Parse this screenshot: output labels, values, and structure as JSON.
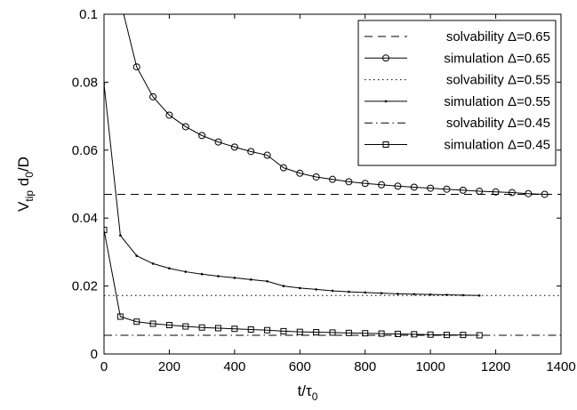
{
  "chart_data": {
    "type": "line",
    "xlabel": {
      "main": "t/τ",
      "sub": "0"
    },
    "ylabel": {
      "p1": "V",
      "s1": "tip",
      "p2": " d",
      "s2": "0",
      "p3": "/D"
    },
    "xlim": [
      0,
      1400
    ],
    "ylim": [
      0,
      0.1
    ],
    "xticks": [
      0,
      200,
      400,
      600,
      800,
      1000,
      1200,
      1400
    ],
    "yticks": [
      0,
      0.02,
      0.04,
      0.06,
      0.08,
      0.1
    ],
    "xtick_labels": [
      "0",
      "200",
      "400",
      "600",
      "800",
      "1000",
      "1200",
      "1400"
    ],
    "ytick_labels": [
      "0",
      "0.02",
      "0.04",
      "0.06",
      "0.08",
      "0.1"
    ],
    "grid": false,
    "legend_position": "top-right",
    "series": [
      {
        "name": "solvability Δ=0.65",
        "style": "dashed",
        "marker": "none",
        "x": [
          0,
          1400
        ],
        "y": [
          0.047,
          0.047
        ]
      },
      {
        "name": "simulation Δ=0.65",
        "style": "solid",
        "marker": "circle",
        "x": [
          50,
          100,
          150,
          200,
          250,
          300,
          350,
          400,
          450,
          500,
          550,
          600,
          650,
          700,
          750,
          800,
          850,
          900,
          950,
          1000,
          1050,
          1100,
          1150,
          1200,
          1250,
          1300,
          1350
        ],
        "y": [
          0.104,
          0.0845,
          0.0757,
          0.0703,
          0.0669,
          0.0643,
          0.0624,
          0.0609,
          0.0596,
          0.0585,
          0.0548,
          0.0532,
          0.0521,
          0.0514,
          0.0507,
          0.0502,
          0.0498,
          0.0494,
          0.0491,
          0.0488,
          0.0485,
          0.0482,
          0.0479,
          0.0477,
          0.0475,
          0.0472,
          0.047
        ]
      },
      {
        "name": "solvability Δ=0.55",
        "style": "dotted",
        "marker": "none",
        "x": [
          0,
          1400
        ],
        "y": [
          0.0172,
          0.0172
        ]
      },
      {
        "name": "simulation Δ=0.55",
        "style": "solid",
        "marker": "dot",
        "x": [
          0,
          50,
          100,
          150,
          200,
          250,
          300,
          350,
          400,
          450,
          500,
          550,
          600,
          650,
          700,
          750,
          800,
          850,
          900,
          950,
          1000,
          1050,
          1100,
          1150
        ],
        "y": [
          0.0795,
          0.0349,
          0.0289,
          0.0266,
          0.0252,
          0.0242,
          0.0235,
          0.0229,
          0.0224,
          0.0219,
          0.0214,
          0.02,
          0.0194,
          0.019,
          0.0186,
          0.0183,
          0.0181,
          0.0179,
          0.0177,
          0.0176,
          0.0175,
          0.0174,
          0.0173,
          0.0172
        ]
      },
      {
        "name": "solvability Δ=0.45",
        "style": "dashdot",
        "marker": "none",
        "x": [
          0,
          1400
        ],
        "y": [
          0.0055,
          0.0055
        ]
      },
      {
        "name": "simulation Δ=0.45",
        "style": "solid",
        "marker": "square",
        "x": [
          0,
          50,
          100,
          150,
          200,
          250,
          300,
          350,
          400,
          450,
          500,
          550,
          600,
          650,
          700,
          750,
          800,
          850,
          900,
          950,
          1000,
          1050,
          1100,
          1150
        ],
        "y": [
          0.0365,
          0.011,
          0.0095,
          0.0089,
          0.0085,
          0.0081,
          0.0078,
          0.0076,
          0.0074,
          0.0072,
          0.007,
          0.0067,
          0.0065,
          0.0064,
          0.0063,
          0.0062,
          0.0061,
          0.006,
          0.0059,
          0.0058,
          0.0057,
          0.0056,
          0.0056,
          0.0055
        ]
      }
    ]
  }
}
